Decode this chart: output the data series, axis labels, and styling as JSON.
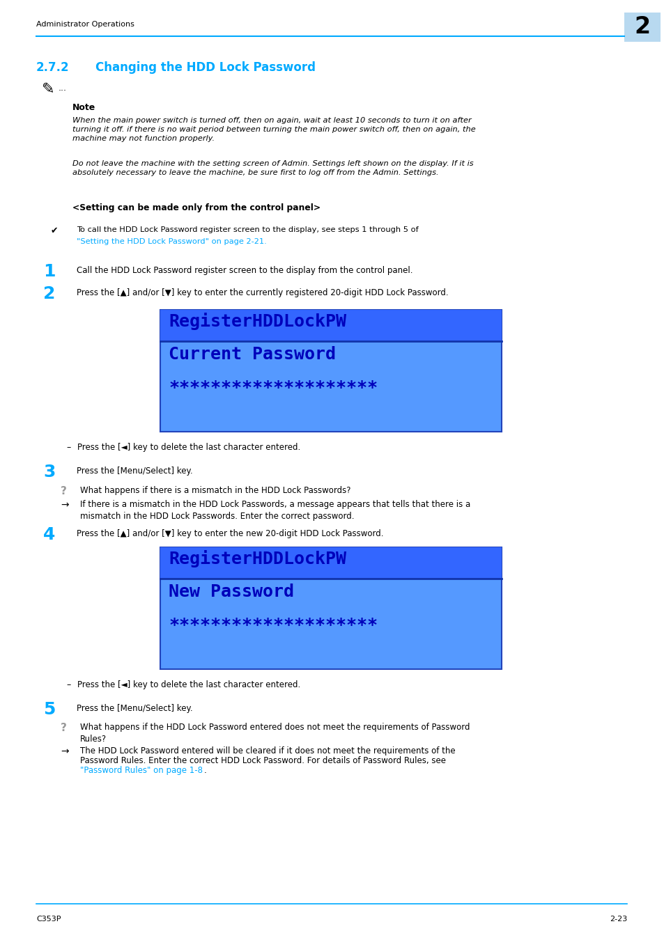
{
  "page_width": 9.54,
  "page_height": 13.5,
  "bg_color": "#ffffff",
  "header_text": "Administrator Operations",
  "header_color": "#000000",
  "header_line_color": "#00aaff",
  "chapter_num": "2",
  "chapter_box_color": "#b8d9f0",
  "section_num": "2.7.2",
  "section_title": "Changing the HDD Lock Password",
  "section_color": "#00aaff",
  "note_label": "Note",
  "note_text1": "When the main power switch is turned off, then on again, wait at least 10 seconds to turn it on after\nturning it off. if there is no wait period between turning the main power switch off, then on again, the\nmachine may not function properly.",
  "note_text2": "Do not leave the machine with the setting screen of Admin. Settings left shown on the display. If it is\nabsolutely necessary to leave the machine, be sure first to log off from the Admin. Settings.",
  "setting_heading": "<Setting can be made only from the control panel>",
  "checkmark_part1": "To call the HDD Lock Password register screen to the display, see steps 1 through 5 of ",
  "checkmark_link": "\"Setting the HDD Lock Password\" on page 2-21",
  "checkmark_after": ".",
  "step1_num": "1",
  "step1_text": "Call the HDD Lock Password register screen to the display from the control panel.",
  "step2_num": "2",
  "step2_text": "Press the [▲] and/or [▼] key to enter the currently registered 20-digit HDD Lock Password.",
  "screen1_line1": "RegisterHDDLockPW",
  "screen1_line2": "Current Password",
  "screen1_line3": "********************",
  "dash_item1": "Press the [◄] key to delete the last character entered.",
  "step3_num": "3",
  "step3_text": "Press the [Menu/Select] key.",
  "q_text": "What happens if there is a mismatch in the HDD Lock Passwords?",
  "arrow_text": "If there is a mismatch in the HDD Lock Passwords, a message appears that tells that there is a\nmismatch in the HDD Lock Passwords. Enter the correct password.",
  "step4_num": "4",
  "step4_text": "Press the [▲] and/or [▼] key to enter the new 20-digit HDD Lock Password.",
  "screen2_line1": "RegisterHDDLockPW",
  "screen2_line2": "New Password",
  "screen2_line3": "********************",
  "dash_item2": "Press the [◄] key to delete the last character entered.",
  "step5_num": "5",
  "step5_text": "Press the [Menu/Select] key.",
  "q2_text": "What happens if the HDD Lock Password entered does not meet the requirements of Password\nRules?",
  "arrow2_line1": "The HDD Lock Password entered will be cleared if it does not meet the requirements of the",
  "arrow2_line2": "Password Rules. Enter the correct HDD Lock Password. For details of Password Rules, see",
  "arrow2_link": "\"Password Rules\" on page 1-8",
  "arrow2_after": ".",
  "footer_left": "C353P",
  "footer_right": "2-23",
  "screen_bg_top": "#3366ff",
  "screen_bg_bottom": "#5599ff",
  "screen_text_color": "#0000bb",
  "link_color": "#00aaff",
  "step_num_color": "#00aaff",
  "gray_q_color": "#999999"
}
